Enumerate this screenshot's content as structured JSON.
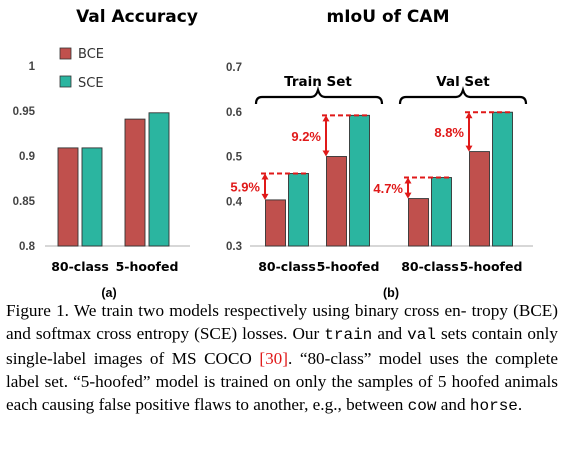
{
  "colors": {
    "bce": "#c0504d",
    "sce": "#2bb5a0",
    "annotation": "#e01919",
    "axis": "#bfbfbf"
  },
  "legend": [
    "BCE",
    "SCE"
  ],
  "chart_data": [
    {
      "type": "bar",
      "title": "Val Accuracy",
      "sublabel": "(a)",
      "categories": [
        "80-class",
        "5-hoofed"
      ],
      "series": [
        {
          "name": "BCE",
          "values": [
            0.909,
            0.941
          ]
        },
        {
          "name": "SCE",
          "values": [
            0.909,
            0.948
          ]
        }
      ],
      "ylim": [
        0.8,
        1
      ],
      "yticks": [
        "0.8",
        "0.85",
        "0.9",
        "0.95",
        "1"
      ],
      "grid": false,
      "legend_position": "top-left"
    },
    {
      "type": "bar",
      "title": "mIoU of CAM",
      "sublabel": "(b)",
      "groups": [
        "Train Set",
        "Val Set"
      ],
      "categories": [
        "80-class",
        "5-hoofed",
        "80-class",
        "5-hoofed"
      ],
      "series": [
        {
          "name": "BCE",
          "values": [
            0.403,
            0.5,
            0.406,
            0.511
          ]
        },
        {
          "name": "SCE",
          "values": [
            0.462,
            0.592,
            0.453,
            0.599
          ]
        }
      ],
      "annotations": [
        "5.9%",
        "9.2%",
        "4.7%",
        "8.8%"
      ],
      "ylim": [
        0.3,
        0.7
      ],
      "yticks": [
        "0.3",
        "0.4",
        "0.5",
        "0.6",
        "0.7"
      ],
      "grid": false
    }
  ],
  "caption": {
    "l1": "Figure 1. We train two models respectively using binary cross en-",
    "l2": "tropy (BCE) and softmax cross entropy (SCE) losses. Our ",
    "l2_code": "train",
    "l3": "and ",
    "l3_code": "val",
    "l3_rest": " sets contain only single-label images of MS COCO ",
    "l3_cite": "[30]",
    "l3_end": ".",
    "l4": "“80-class” model uses the complete label set. “5-hoofed” model",
    "l5": "is trained on only the samples of 5 hoofed animals each causing",
    "l6": "false positive flaws to another, e.g., between ",
    "l6_code1": "cow",
    "l6_mid": " and ",
    "l6_code2": "horse",
    "l6_end": "."
  }
}
